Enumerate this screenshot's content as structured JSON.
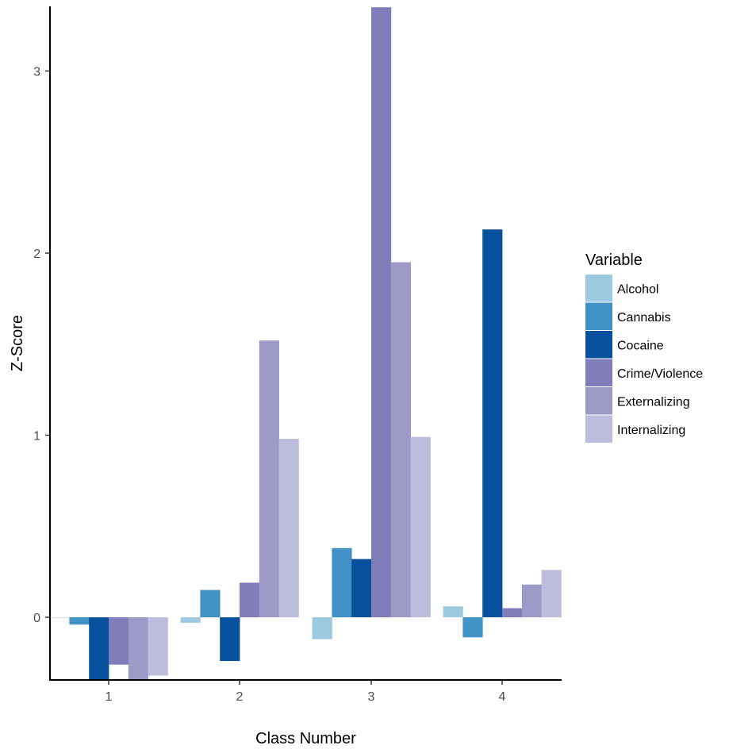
{
  "chart_data": {
    "type": "bar",
    "title": "",
    "xlabel": "Class Number",
    "ylabel": "Z-Score",
    "categories": [
      "1",
      "2",
      "3",
      "4"
    ],
    "ylim": [
      -0.465,
      3.35
    ],
    "yticks": [
      0,
      1,
      2,
      3
    ],
    "grid": false,
    "legend": {
      "title": "Variable",
      "position": "right"
    },
    "series": [
      {
        "name": "Alcohol",
        "color": "#9ecae1",
        "values": [
          0.0,
          -0.03,
          -0.12,
          0.06
        ]
      },
      {
        "name": "Cannabis",
        "color": "#4292c6",
        "values": [
          -0.04,
          0.15,
          0.38,
          -0.11
        ]
      },
      {
        "name": "Cocaine",
        "color": "#08519c",
        "values": [
          -0.41,
          -0.24,
          0.32,
          2.13
        ]
      },
      {
        "name": "Crime/Violence",
        "color": "#807dba",
        "values": [
          -0.26,
          0.19,
          3.35,
          0.05
        ]
      },
      {
        "name": "Externalizing",
        "color": "#9e9ac8",
        "values": [
          -0.465,
          1.52,
          1.95,
          0.18
        ]
      },
      {
        "name": "Internalizing",
        "color": "#bcbddc",
        "values": [
          -0.32,
          0.98,
          0.99,
          0.26
        ]
      }
    ]
  }
}
